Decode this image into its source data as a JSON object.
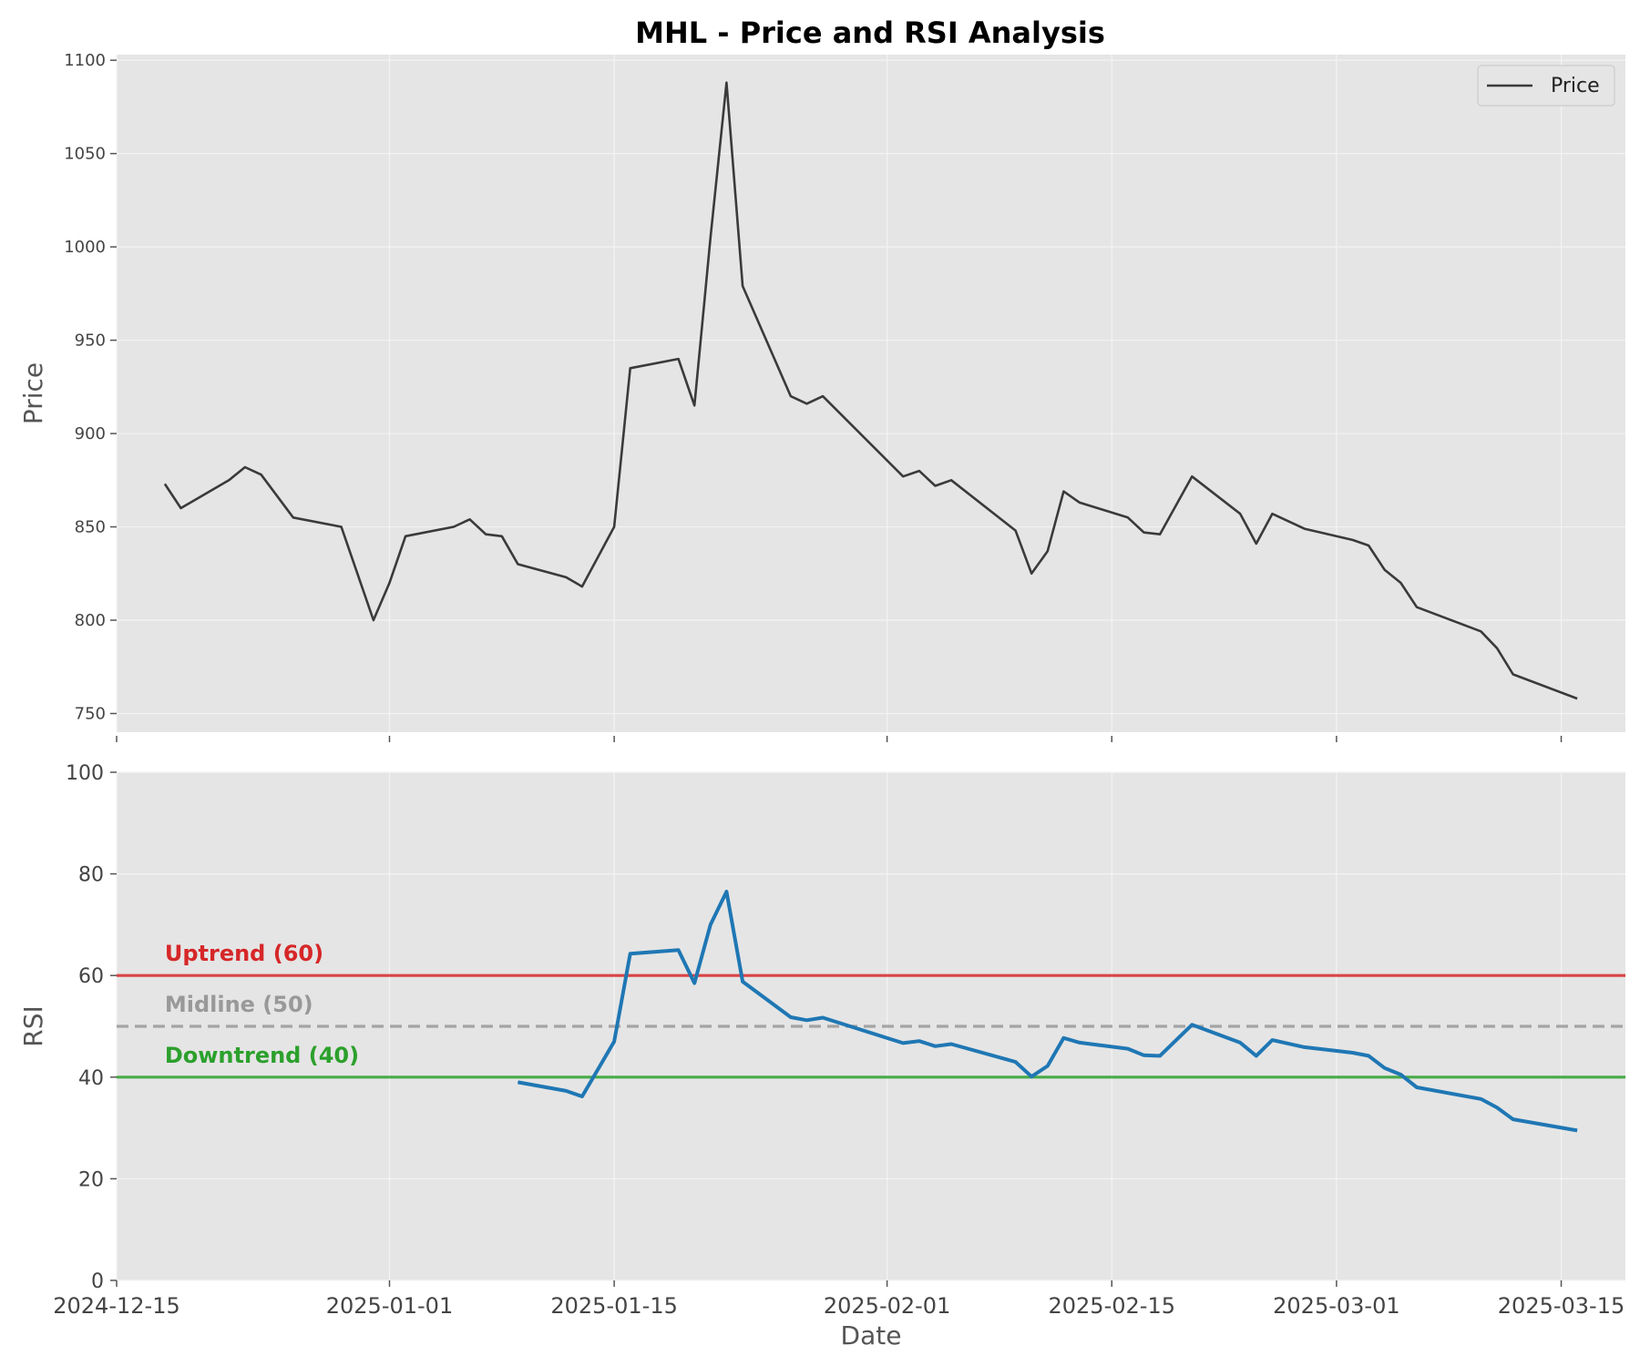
{
  "chart_data": [
    {
      "type": "line",
      "title": "MHL - Price and RSI Analysis",
      "ylabel": "Price",
      "ylim": [
        740,
        1103
      ],
      "yticks": [
        750,
        800,
        850,
        900,
        950,
        1000,
        1050,
        1100
      ],
      "xlim": [
        "2024-12-15",
        "2025-03-19"
      ],
      "grid": true,
      "legend": {
        "position": "top-right",
        "entries": [
          "Price"
        ]
      },
      "colors": {
        "price": "#3a3a3a",
        "background": "#e5e5e5",
        "grid": "#f2f2f2"
      },
      "series": [
        {
          "name": "Price",
          "points": [
            [
              "2024-12-18",
              873
            ],
            [
              "2024-12-19",
              860
            ],
            [
              "2024-12-22",
              875
            ],
            [
              "2024-12-23",
              882
            ],
            [
              "2024-12-24",
              878
            ],
            [
              "2024-12-26",
              855
            ],
            [
              "2024-12-29",
              850
            ],
            [
              "2024-12-31",
              800
            ],
            [
              "2025-01-01",
              820
            ],
            [
              "2025-01-02",
              845
            ],
            [
              "2025-01-05",
              850
            ],
            [
              "2025-01-06",
              854
            ],
            [
              "2025-01-07",
              846
            ],
            [
              "2025-01-08",
              845
            ],
            [
              "2025-01-09",
              830
            ],
            [
              "2025-01-12",
              823
            ],
            [
              "2025-01-13",
              818
            ],
            [
              "2025-01-15",
              850
            ],
            [
              "2025-01-16",
              935
            ],
            [
              "2025-01-19",
              940
            ],
            [
              "2025-01-20",
              915
            ],
            [
              "2025-01-21",
              1005
            ],
            [
              "2025-01-22",
              1088
            ],
            [
              "2025-01-23",
              979
            ],
            [
              "2025-01-26",
              920
            ],
            [
              "2025-01-27",
              916
            ],
            [
              "2025-01-28",
              920
            ],
            [
              "2025-02-02",
              877
            ],
            [
              "2025-02-03",
              880
            ],
            [
              "2025-02-04",
              872
            ],
            [
              "2025-02-05",
              875
            ],
            [
              "2025-02-09",
              848
            ],
            [
              "2025-02-10",
              825
            ],
            [
              "2025-02-11",
              837
            ],
            [
              "2025-02-12",
              869
            ],
            [
              "2025-02-13",
              863
            ],
            [
              "2025-02-16",
              855
            ],
            [
              "2025-02-17",
              847
            ],
            [
              "2025-02-18",
              846
            ],
            [
              "2025-02-20",
              877
            ],
            [
              "2025-02-23",
              857
            ],
            [
              "2025-02-24",
              841
            ],
            [
              "2025-02-25",
              857
            ],
            [
              "2025-02-27",
              849
            ],
            [
              "2025-03-02",
              843
            ],
            [
              "2025-03-03",
              840
            ],
            [
              "2025-03-04",
              827
            ],
            [
              "2025-03-05",
              820
            ],
            [
              "2025-03-06",
              807
            ],
            [
              "2025-03-10",
              794
            ],
            [
              "2025-03-11",
              785
            ],
            [
              "2025-03-12",
              771
            ],
            [
              "2025-03-16",
              758
            ]
          ]
        }
      ]
    },
    {
      "type": "line",
      "xlabel": "Date",
      "ylabel": "RSI",
      "ylim": [
        0,
        100
      ],
      "yticks": [
        0,
        20,
        40,
        60,
        80,
        100
      ],
      "xlim": [
        "2024-12-15",
        "2025-03-19"
      ],
      "xticks": [
        "2024-12-15",
        "2025-01-01",
        "2025-01-15",
        "2025-02-01",
        "2025-02-15",
        "2025-03-01",
        "2025-03-15"
      ],
      "grid": true,
      "colors": {
        "rsi": "#1f77b4",
        "uptrend": "#d62728",
        "midline": "#999999",
        "downtrend": "#2ca02c",
        "background": "#e5e5e5"
      },
      "reference_lines": [
        {
          "label": "Uptrend (60)",
          "value": 60,
          "color": "#d62728",
          "style": "solid"
        },
        {
          "label": "Midline (50)",
          "value": 50,
          "color": "#999999",
          "style": "dashed"
        },
        {
          "label": "Downtrend (40)",
          "value": 40,
          "color": "#2ca02c",
          "style": "solid"
        }
      ],
      "series": [
        {
          "points": [
            [
              "2025-01-09",
              39
            ],
            [
              "2025-01-12",
              37.3
            ],
            [
              "2025-01-13",
              36.2
            ],
            [
              "2025-01-15",
              47
            ],
            [
              "2025-01-16",
              64.3
            ],
            [
              "2025-01-19",
              65
            ],
            [
              "2025-01-20",
              58.5
            ],
            [
              "2025-01-21",
              70
            ],
            [
              "2025-01-22",
              76.5
            ],
            [
              "2025-01-23",
              58.8
            ],
            [
              "2025-01-26",
              51.8
            ],
            [
              "2025-01-27",
              51.2
            ],
            [
              "2025-01-28",
              51.7
            ],
            [
              "2025-02-02",
              46.7
            ],
            [
              "2025-02-03",
              47.1
            ],
            [
              "2025-02-04",
              46.1
            ],
            [
              "2025-02-05",
              46.5
            ],
            [
              "2025-02-09",
              43
            ],
            [
              "2025-02-10",
              40.1
            ],
            [
              "2025-02-11",
              42.2
            ],
            [
              "2025-02-12",
              47.7
            ],
            [
              "2025-02-13",
              46.8
            ],
            [
              "2025-02-16",
              45.6
            ],
            [
              "2025-02-17",
              44.3
            ],
            [
              "2025-02-18",
              44.2
            ],
            [
              "2025-02-20",
              50.3
            ],
            [
              "2025-02-23",
              46.8
            ],
            [
              "2025-02-24",
              44.2
            ],
            [
              "2025-02-25",
              47.3
            ],
            [
              "2025-02-27",
              45.9
            ],
            [
              "2025-03-02",
              44.8
            ],
            [
              "2025-03-03",
              44.2
            ],
            [
              "2025-03-04",
              41.8
            ],
            [
              "2025-03-05",
              40.5
            ],
            [
              "2025-03-06",
              38
            ],
            [
              "2025-03-10",
              35.7
            ],
            [
              "2025-03-11",
              34
            ],
            [
              "2025-03-12",
              31.7
            ],
            [
              "2025-03-16",
              29.5
            ]
          ]
        }
      ]
    }
  ]
}
